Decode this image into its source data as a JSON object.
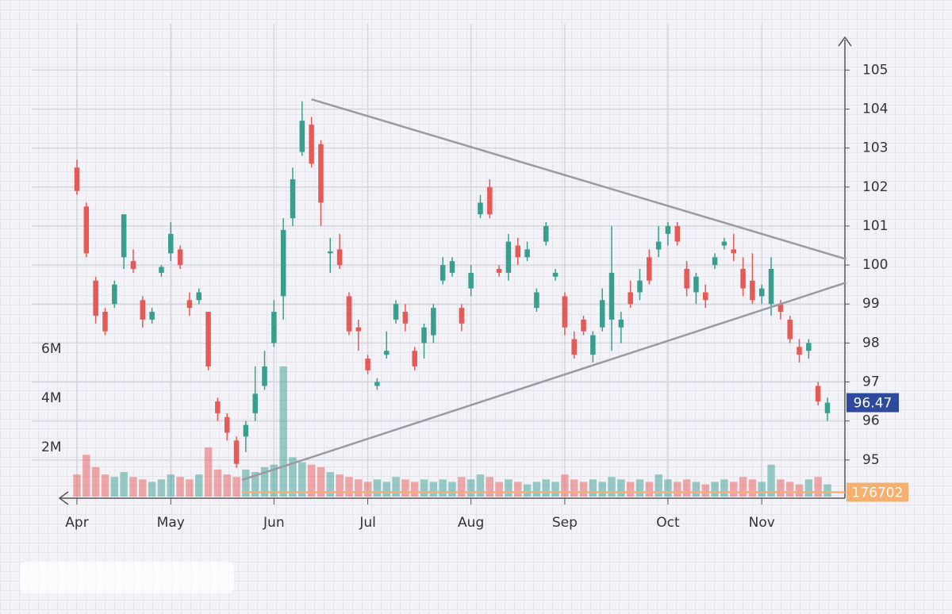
{
  "chart_data": {
    "type": "candlestick",
    "categories": [
      "Apr",
      null,
      null,
      null,
      null,
      null,
      null,
      null,
      null,
      null,
      "May",
      null,
      null,
      null,
      null,
      null,
      null,
      null,
      null,
      null,
      null,
      "Jun",
      null,
      null,
      null,
      null,
      null,
      null,
      null,
      null,
      null,
      "Jul",
      null,
      null,
      null,
      null,
      null,
      null,
      null,
      null,
      null,
      null,
      "Aug",
      null,
      null,
      null,
      null,
      null,
      null,
      null,
      null,
      null,
      "Sep",
      null,
      null,
      null,
      null,
      null,
      null,
      null,
      null,
      null,
      null,
      "Oct",
      null,
      null,
      null,
      null,
      null,
      null,
      null,
      null,
      null,
      "Nov",
      null,
      null,
      null,
      null,
      null,
      null,
      null
    ],
    "open": [
      102.5,
      101.5,
      99.6,
      98.8,
      99.0,
      100.2,
      100.1,
      99.1,
      98.6,
      99.8,
      100.3,
      100.4,
      99.1,
      99.1,
      98.8,
      96.5,
      96.1,
      95.5,
      95.6,
      96.2,
      96.9,
      98.0,
      99.2,
      101.2,
      102.9,
      103.6,
      103.1,
      100.3,
      100.4,
      99.2,
      98.4,
      97.6,
      96.9,
      97.7,
      98.6,
      98.8,
      97.8,
      98.0,
      98.2,
      99.6,
      99.8,
      98.9,
      99.4,
      101.3,
      102.0,
      99.9,
      99.8,
      100.5,
      100.2,
      98.9,
      100.6,
      99.7,
      99.2,
      98.1,
      98.6,
      97.7,
      98.4,
      98.6,
      98.4,
      99.3,
      99.3,
      100.2,
      100.4,
      100.8,
      101.0,
      99.9,
      99.3,
      99.3,
      100.0,
      100.5,
      100.4,
      99.9,
      99.6,
      99.2,
      99.0,
      99.0,
      98.6,
      97.9,
      97.8,
      96.9,
      96.2
    ],
    "high": [
      102.7,
      101.6,
      99.7,
      98.9,
      99.6,
      101.3,
      100.4,
      99.2,
      98.9,
      100.0,
      101.1,
      100.5,
      99.3,
      99.4,
      98.8,
      96.6,
      96.2,
      95.6,
      96.0,
      97.4,
      97.8,
      99.1,
      101.2,
      102.5,
      104.2,
      103.8,
      103.2,
      100.7,
      100.8,
      99.3,
      98.6,
      97.7,
      97.1,
      98.3,
      99.1,
      99.0,
      97.9,
      98.5,
      99.0,
      100.2,
      100.2,
      99.0,
      100.0,
      101.8,
      102.2,
      100.0,
      100.8,
      100.7,
      100.6,
      99.4,
      101.1,
      99.9,
      99.3,
      98.3,
      98.7,
      98.3,
      99.4,
      101.0,
      98.8,
      99.6,
      99.9,
      100.4,
      101.0,
      101.1,
      101.1,
      100.1,
      99.8,
      99.5,
      100.3,
      100.7,
      100.8,
      100.2,
      100.3,
      99.5,
      100.2,
      99.1,
      98.7,
      98.1,
      98.1,
      97.0,
      96.6
    ],
    "low": [
      101.8,
      100.2,
      98.5,
      98.2,
      98.9,
      99.9,
      99.8,
      98.4,
      98.5,
      99.7,
      100.1,
      99.9,
      98.7,
      99.0,
      97.3,
      96.0,
      95.5,
      94.8,
      95.2,
      96.0,
      96.8,
      97.9,
      98.6,
      101.0,
      102.8,
      102.5,
      101.0,
      99.8,
      99.9,
      98.2,
      97.8,
      97.2,
      96.8,
      97.6,
      98.5,
      98.3,
      97.3,
      97.6,
      98.0,
      99.5,
      99.7,
      98.3,
      99.2,
      101.2,
      101.2,
      99.7,
      99.6,
      100.0,
      100.1,
      98.8,
      100.5,
      99.6,
      98.2,
      97.6,
      98.2,
      97.5,
      98.3,
      97.8,
      98.0,
      98.9,
      99.1,
      99.5,
      100.2,
      100.5,
      100.5,
      99.2,
      99.0,
      98.9,
      99.9,
      100.4,
      100.1,
      99.2,
      99.0,
      99.0,
      98.7,
      98.6,
      98.0,
      97.5,
      97.6,
      96.4,
      96.0
    ],
    "close": [
      101.9,
      100.3,
      98.7,
      98.3,
      99.5,
      101.3,
      99.9,
      98.6,
      98.8,
      99.95,
      100.8,
      100.0,
      98.9,
      99.3,
      97.4,
      96.2,
      95.7,
      94.9,
      95.9,
      96.7,
      97.4,
      98.8,
      100.9,
      102.2,
      103.7,
      102.6,
      101.6,
      100.35,
      100.0,
      98.3,
      98.3,
      97.3,
      97.0,
      97.8,
      99.0,
      98.5,
      97.4,
      98.4,
      98.9,
      100.0,
      100.1,
      98.5,
      99.8,
      101.6,
      101.3,
      99.8,
      100.6,
      100.2,
      100.4,
      99.3,
      101.0,
      99.8,
      98.4,
      97.7,
      98.3,
      98.2,
      99.1,
      99.8,
      98.6,
      99.0,
      99.6,
      99.6,
      100.6,
      101.0,
      100.6,
      99.4,
      99.7,
      99.1,
      100.2,
      100.6,
      100.3,
      99.4,
      99.1,
      99.4,
      99.9,
      98.8,
      98.1,
      97.7,
      98.0,
      96.5,
      96.47
    ],
    "volume": [
      900000,
      1700000,
      1200000,
      900000,
      800000,
      1000000,
      800000,
      700000,
      600000,
      700000,
      900000,
      800000,
      700000,
      900000,
      2000000,
      1100000,
      900000,
      800000,
      1100000,
      1000000,
      1200000,
      1300000,
      5300000,
      1600000,
      1400000,
      1300000,
      1200000,
      1000000,
      900000,
      800000,
      700000,
      600000,
      700000,
      600000,
      800000,
      700000,
      600000,
      700000,
      600000,
      700000,
      600000,
      800000,
      700000,
      900000,
      800000,
      600000,
      700000,
      600000,
      500000,
      600000,
      700000,
      600000,
      900000,
      700000,
      600000,
      700000,
      600000,
      800000,
      700000,
      600000,
      700000,
      600000,
      900000,
      700000,
      600000,
      700000,
      600000,
      500000,
      600000,
      700000,
      600000,
      800000,
      700000,
      600000,
      1300000,
      700000,
      600000,
      500000,
      700000,
      800000,
      500000
    ],
    "up_color": "#3a9e8f",
    "down_color": "#e55a57",
    "ylim": [
      94,
      105.8
    ],
    "yticks": [
      95,
      96,
      97,
      98,
      99,
      100,
      101,
      102,
      103,
      104,
      105
    ],
    "volume_lim": [
      0,
      18600000
    ],
    "volume_ticks": [
      {
        "value": 2000000,
        "label": "2M"
      },
      {
        "value": 4000000,
        "label": "4M"
      },
      {
        "value": 6000000,
        "label": "6M"
      }
    ],
    "volume_line": 176702,
    "trendlines": [
      {
        "points": [
          [
            25,
            104.25
          ],
          [
            82,
            100.15
          ]
        ]
      },
      {
        "points": [
          [
            17.6,
            94.49
          ],
          [
            82,
            99.55
          ]
        ]
      }
    ],
    "grid": true
  }
}
